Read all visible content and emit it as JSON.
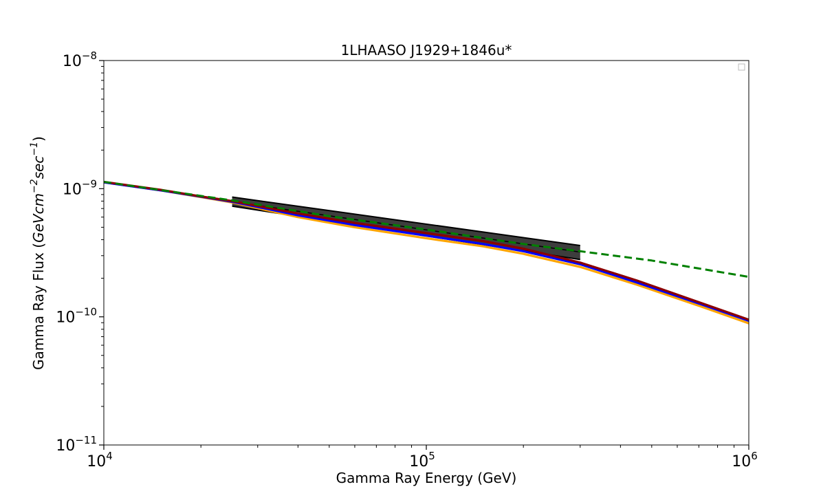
{
  "chart_data": {
    "type": "line",
    "title": "1LHAASO J1929+1846u*",
    "xlabel": "Gamma Ray Energy (GeV)",
    "ylabel_prefix": "Gamma Ray Flux (",
    "ylabel_unit_main": "GeVcm",
    "ylabel_exp1": "−2",
    "ylabel_unit_mid": "sec",
    "ylabel_exp2": "−1",
    "ylabel_suffix": ")",
    "xscale": "log",
    "yscale": "log",
    "xlim": [
      10000,
      1000000
    ],
    "ylim": [
      1e-11,
      1e-08
    ],
    "grid": false,
    "legend": "top-right (empty)",
    "x_ticks": [
      {
        "value": 10000,
        "base": "10",
        "exp": "4"
      },
      {
        "value": 100000,
        "base": "10",
        "exp": "5"
      },
      {
        "value": 1000000,
        "base": "10",
        "exp": "6"
      }
    ],
    "y_ticks": [
      {
        "value": 1e-11,
        "base": "10",
        "exp": "−11"
      },
      {
        "value": 1e-10,
        "base": "10",
        "exp": "−10"
      },
      {
        "value": 1e-09,
        "base": "10",
        "exp": "−9"
      },
      {
        "value": 1e-08,
        "base": "10",
        "exp": "−8"
      }
    ],
    "band": {
      "color": "#222222",
      "upper": {
        "x": [
          25000,
          300000
        ],
        "y": [
          8.6e-10,
          3.6e-10
        ]
      },
      "lower": {
        "x": [
          25000,
          300000
        ],
        "y": [
          7.3e-10,
          2.8e-10
        ]
      },
      "central": {
        "x": [
          25000,
          300000
        ],
        "y": [
          7.9e-10,
          3.2e-10
        ]
      }
    },
    "series": [
      {
        "color": "#ffa500",
        "style": "solid",
        "x": [
          10000,
          15000,
          20000,
          25000,
          40000,
          60000,
          100000,
          150000,
          200000,
          300000,
          450000,
          700000,
          1000000
        ],
        "y": [
          1.12e-09,
          9.7e-10,
          8.6e-10,
          7.8e-10,
          6e-10,
          5e-10,
          4.1e-10,
          3.55e-10,
          3.1e-10,
          2.45e-10,
          1.78e-10,
          1.22e-10,
          8.9e-11
        ]
      },
      {
        "color": "#0000ff",
        "style": "solid",
        "x": [
          10000,
          15000,
          20000,
          25000,
          40000,
          60000,
          100000,
          150000,
          200000,
          300000,
          450000,
          700000,
          1000000
        ],
        "y": [
          1.12e-09,
          9.7e-10,
          8.65e-10,
          7.9e-10,
          6.2e-10,
          5.2e-10,
          4.3e-10,
          3.7e-10,
          3.25e-10,
          2.57e-10,
          1.85e-10,
          1.27e-10,
          9.3e-11
        ]
      },
      {
        "color": "#8b0000",
        "style": "solid",
        "x": [
          10000,
          15000,
          20000,
          25000,
          40000,
          60000,
          100000,
          150000,
          200000,
          300000,
          450000,
          700000,
          1000000
        ],
        "y": [
          1.13e-09,
          9.8e-10,
          8.7e-10,
          8e-10,
          6.4e-10,
          5.4e-10,
          4.5e-10,
          3.9e-10,
          3.4e-10,
          2.65e-10,
          1.92e-10,
          1.3e-10,
          9.5e-11
        ]
      },
      {
        "color": "#008000",
        "style": "dashed",
        "x": [
          10000,
          25000,
          50000,
          100000,
          200000,
          300000,
          500000,
          1000000
        ],
        "y": [
          1.13e-09,
          8.1e-10,
          6.1e-10,
          4.8e-10,
          3.7e-10,
          3.25e-10,
          2.75e-10,
          2.05e-10
        ]
      }
    ]
  }
}
